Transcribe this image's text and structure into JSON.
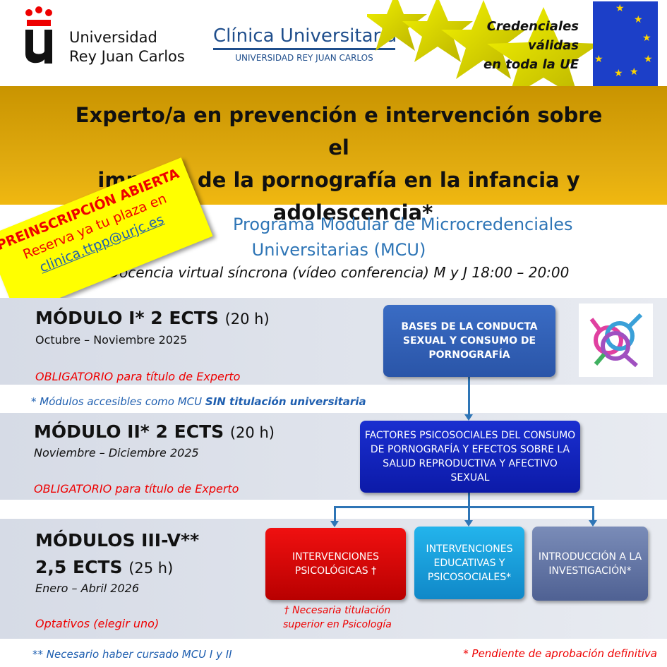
{
  "header": {
    "urjc_logo": [
      "Universidad",
      "Rey Juan Carlos"
    ],
    "clinica_logo": {
      "name": "Clínica Universitaria",
      "sub": "UNIVERSIDAD REY JUAN CARLOS"
    },
    "eu_text": [
      "Credenciales",
      "válidas",
      "en toda la UE"
    ]
  },
  "title": [
    "Experto/a en prevención e intervención sobre el",
    "impacto de la pornografía en la infancia y",
    "adolescencia*"
  ],
  "sticker": {
    "line1": "PREINSCRIPCIÓN ABIERTA",
    "line2": "Reserva ya tu plaza en",
    "email": "clinica.ttpp@urjc.es"
  },
  "program": {
    "line1": "Programa Modular de Microcredenciales",
    "line2": "Universitarias (MCU)",
    "schedule": "Docencia virtual síncrona (vídeo conferencia) M y J 18:00 – 20:00"
  },
  "modules": [
    {
      "heading": "MÓDULO I* 2 ECTS",
      "hours": "(20 h)",
      "dates": "Octubre – Noviembre 2025",
      "req": "OBLIGATORIO para título de Experto"
    },
    {
      "heading": "MÓDULO II* 2 ECTS",
      "hours": "(20 h)",
      "dates": "Noviembre – Diciembre 2025",
      "req": "OBLIGATORIO para título de Experto"
    },
    {
      "heading": "MÓDULOS III-V**",
      "heading2": "2,5 ECTS",
      "hours": "(25 h)",
      "dates": "Enero – Abril 2026",
      "req": "Optativos (elegir uno)"
    }
  ],
  "notes": {
    "mcu_pre": "* Módulos accesibles como MCU ",
    "mcu_bold": "SIN titulación universitaria",
    "mcu12": "** Necesario haber cursado MCU I y II",
    "pending": "* Pendiente de aprobación definitiva",
    "psych": [
      "† Necesaria titulación",
      "superior en Psicología"
    ]
  },
  "boxes": {
    "bases": "BASES DE LA CONDUCTA SEXUAL Y CONSUMO DE PORNOGRAFÍA",
    "factores": "FACTORES PSICOSOCIALES DEL CONSUMO DE PORNOGRAFÍA Y EFECTOS SOBRE LA SALUD REPRODUCTIVA Y AFECTIVO SEXUAL",
    "psico": "INTERVENCIONES PSICOLÓGICAS †",
    "educ": "INTERVENCIONES EDUCATIVAS Y PSICOSOCIALES*",
    "invest": "INTRODUCCIÓN A LA INVESTIGACIÓN*"
  },
  "colors": {
    "gold": "#e2ac10",
    "blue": "#2e75b6",
    "red": "#e00000",
    "sticker": "#ffff00"
  }
}
